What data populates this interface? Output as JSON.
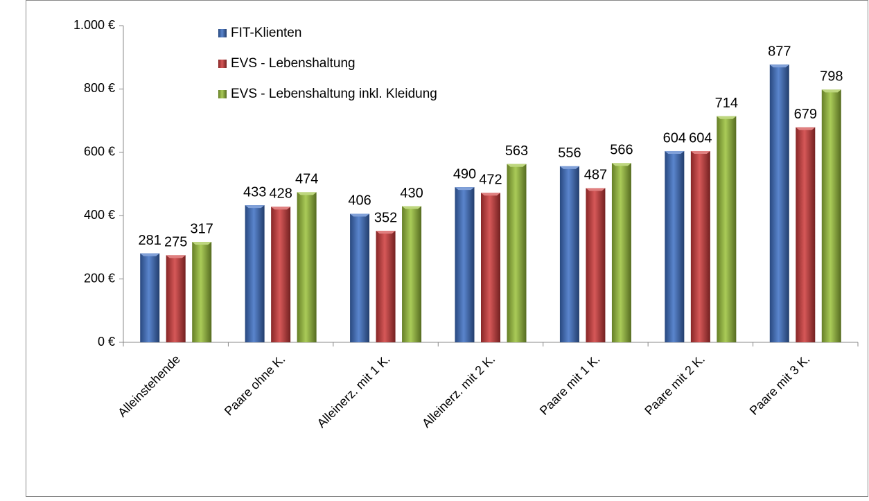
{
  "chart_data": {
    "type": "bar",
    "categories": [
      "Alleinstehende",
      "Paare ohne K.",
      "Alleinerz. mit 1 K.",
      "Alleinerz. mit 2 K.",
      "Paare mit 1 K.",
      "Paare mit 2 K.",
      "Paare mit 3 K."
    ],
    "series": [
      {
        "name": "FIT-Klienten",
        "color": "#3d6fc4",
        "values": [
          281,
          433,
          406,
          490,
          556,
          604,
          877
        ]
      },
      {
        "name": "EVS - Lebenshaltung",
        "color": "#cf3b3b",
        "values": [
          275,
          428,
          352,
          472,
          487,
          604,
          679
        ]
      },
      {
        "name": "EVS - Lebenshaltung inkl. Kleidung",
        "color": "#9bc23a",
        "values": [
          317,
          474,
          430,
          563,
          566,
          714,
          798
        ]
      }
    ],
    "ylim": [
      0,
      1000
    ],
    "yticks": [
      {
        "value": 0,
        "label": "0 €"
      },
      {
        "value": 200,
        "label": "200 €"
      },
      {
        "value": 400,
        "label": "400 €"
      },
      {
        "value": 600,
        "label": "600 €"
      },
      {
        "value": 800,
        "label": "800 €"
      },
      {
        "value": 1000,
        "label": "1.000 €"
      }
    ],
    "grid": false,
    "legend": "top-left"
  }
}
